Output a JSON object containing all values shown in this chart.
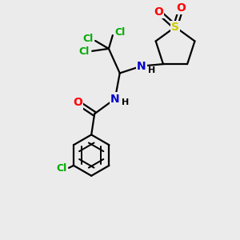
{
  "bg_color": "#ebebeb",
  "bond_color": "#000000",
  "cl_color": "#00aa00",
  "n_color": "#0000cc",
  "o_color": "#ff0000",
  "s_color": "#cccc00",
  "bond_width": 1.6,
  "fig_size": [
    3.0,
    3.0
  ],
  "dpi": 100,
  "xlim": [
    -2.5,
    2.8
  ],
  "ylim": [
    -3.0,
    3.0
  ]
}
